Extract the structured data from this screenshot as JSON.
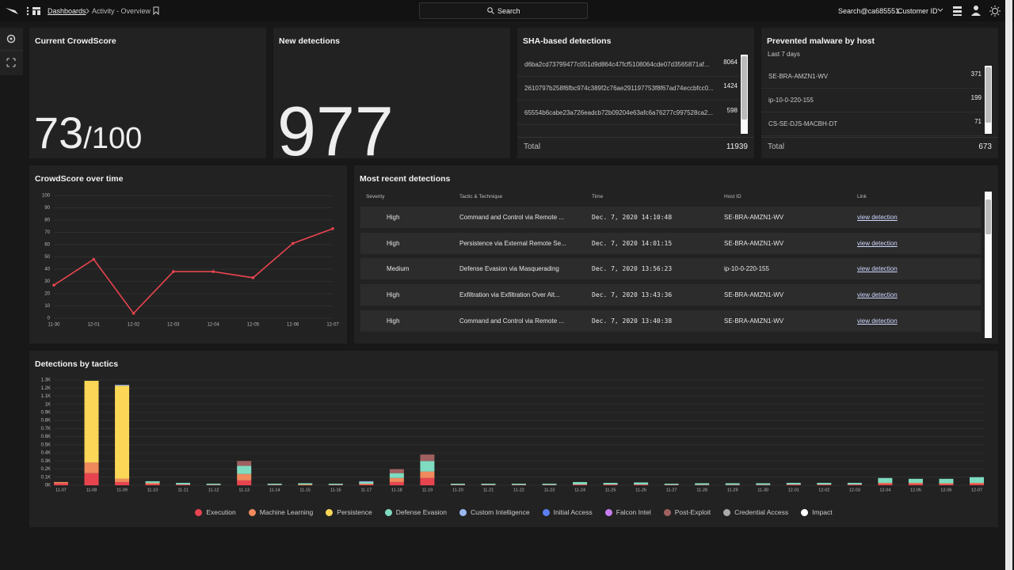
{
  "header": {
    "breadcrumb": "Dashboards",
    "page": "Activity - Overview",
    "search": "Search",
    "user": "Search@ca685551",
    "customer": "Customer ID"
  },
  "crowdscore": {
    "title": "Current CrowdScore",
    "score": 73,
    "out_of": "/100"
  },
  "new_detections": {
    "title": "New detections",
    "value": 977
  },
  "sha_detections": {
    "title": "SHA-based detections",
    "rows": [
      {
        "hash": "d6ba2cd73799477c051d9d864c47fcf5108064cde07d3565871af...",
        "count": 8064
      },
      {
        "hash": "2610797b258f6fbc974c389f2c76ae291197753f8f67ad74eccbfcc0...",
        "count": 1424
      },
      {
        "hash": "65554b6cabe23a726eadcb72b09204e63afc6a76277c997528ca2...",
        "count": 598
      }
    ],
    "total_label": "Total",
    "total": 11939
  },
  "prevented_malware": {
    "title": "Prevented malware by host",
    "subtitle": "Last 7 days",
    "rows": [
      {
        "host": "SE-BRA-AMZN1-WV",
        "count": 371
      },
      {
        "host": "ip-10-0-220-155",
        "count": 199
      },
      {
        "host": "CS-SE-DJS-MACBH-DT",
        "count": 71
      }
    ],
    "total_label": "Total",
    "total": 673
  },
  "crowdscore_chart": {
    "type": "line",
    "title": "CrowdScore over time",
    "categories": [
      "11-30",
      "12-01",
      "12-02",
      "12-03",
      "12-04",
      "12-05",
      "12-06",
      "12-07"
    ],
    "values": [
      27,
      48,
      4,
      38,
      38,
      33,
      61,
      73
    ],
    "color": "#e8444f",
    "ylim": [
      0,
      100
    ],
    "yticks": [
      0,
      10,
      20,
      30,
      40,
      50,
      60,
      70,
      80,
      90,
      100
    ],
    "grid": true
  },
  "recent_detections": {
    "title": "Most recent detections",
    "columns": [
      "Severity",
      "Tactic & Technique",
      "Time",
      "Host ID",
      "Link"
    ],
    "rows": [
      {
        "severity": "High",
        "severity_color": "#2ec4a5",
        "tactic": "Command and Control via Remote ...",
        "time": "Dec. 7, 2020 14:10:48",
        "host": "SE-BRA-AMZN1-WV",
        "link": "view detection"
      },
      {
        "severity": "High",
        "severity_color": "#2ec4a5",
        "tactic": "Persistence via External Remote Se...",
        "time": "Dec. 7, 2020 14:01:15",
        "host": "SE-BRA-AMZN1-WV",
        "link": "view detection"
      },
      {
        "severity": "Medium",
        "severity_color": "#f5c21b",
        "tactic": "Defense Evasion via Masquerading",
        "time": "Dec. 7, 2020 13:56:23",
        "host": "ip-10-0-220-155",
        "link": "view detection"
      },
      {
        "severity": "High",
        "severity_color": "#f07a3a",
        "tactic": "Exfiltration via Exfiltration Over Alt...",
        "time": "Dec. 7, 2020 13:43:36",
        "host": "SE-BRA-AMZN1-WV",
        "link": "view detection"
      },
      {
        "severity": "High",
        "severity_color": "#2ec4a5",
        "tactic": "Command and Control via Remote ...",
        "time": "Dec. 7, 2020 13:40:38",
        "host": "SE-BRA-AMZN1-WV",
        "link": "view detection"
      }
    ]
  },
  "tactics_chart": {
    "type": "bar",
    "stacked": true,
    "title": "Detections by tactics",
    "grid": true,
    "legend": "bottom",
    "categories": [
      "11-07",
      "11-08",
      "11-09",
      "11-10",
      "11-11",
      "11-12",
      "11-13",
      "11-14",
      "11-15",
      "11-16",
      "11-17",
      "11-18",
      "11-19",
      "11-20",
      "11-21",
      "11-22",
      "11-23",
      "11-24",
      "11-25",
      "11-26",
      "11-27",
      "11-28",
      "11-29",
      "11-30",
      "12-01",
      "12-02",
      "12-03",
      "12-04",
      "12-05",
      "12-06",
      "12-07"
    ],
    "ylim": [
      0,
      1300
    ],
    "yticks": [
      {
        "value": 0,
        "label": "0K"
      },
      {
        "value": 100,
        "label": "0.1K"
      },
      {
        "value": 200,
        "label": "0.2K"
      },
      {
        "value": 300,
        "label": "0.3K"
      },
      {
        "value": 400,
        "label": "0.4K"
      },
      {
        "value": 500,
        "label": "0.5K"
      },
      {
        "value": 600,
        "label": "0.6K"
      },
      {
        "value": 700,
        "label": "0.7K"
      },
      {
        "value": 800,
        "label": "0.8K"
      },
      {
        "value": 900,
        "label": "0.9K"
      },
      {
        "value": 1000,
        "label": "1K"
      },
      {
        "value": 1100,
        "label": "1.1K"
      },
      {
        "value": 1200,
        "label": "1.2K"
      },
      {
        "value": 1300,
        "label": "1.3K"
      }
    ],
    "series": [
      {
        "name": "Execution",
        "color": "#e8444f",
        "values": [
          25,
          150,
          40,
          15,
          10,
          5,
          60,
          5,
          0,
          5,
          10,
          40,
          90,
          5,
          5,
          5,
          5,
          10,
          10,
          10,
          5,
          5,
          5,
          5,
          10,
          10,
          10,
          20,
          20,
          15,
          20
        ]
      },
      {
        "name": "Machine Learning",
        "color": "#f08a5d",
        "values": [
          15,
          130,
          40,
          15,
          0,
          0,
          80,
          0,
          10,
          0,
          10,
          50,
          80,
          0,
          0,
          0,
          0,
          0,
          0,
          0,
          0,
          0,
          0,
          0,
          0,
          0,
          0,
          10,
          10,
          10,
          10
        ]
      },
      {
        "name": "Persistence",
        "color": "#fcd757",
        "values": [
          0,
          1010,
          1150,
          0,
          0,
          0,
          0,
          0,
          0,
          0,
          0,
          0,
          0,
          0,
          0,
          0,
          0,
          0,
          0,
          0,
          0,
          0,
          0,
          0,
          0,
          0,
          0,
          0,
          0,
          0,
          0
        ]
      },
      {
        "name": "Defense Evasion",
        "color": "#7fdcc0",
        "values": [
          0,
          0,
          0,
          20,
          20,
          15,
          100,
          15,
          15,
          15,
          20,
          60,
          130,
          15,
          15,
          15,
          15,
          30,
          20,
          25,
          15,
          20,
          20,
          20,
          20,
          20,
          20,
          60,
          50,
          55,
          70
        ]
      },
      {
        "name": "Custom Intelligence",
        "color": "#9ab8f0",
        "values": [
          0,
          0,
          10,
          0,
          0,
          0,
          0,
          0,
          0,
          0,
          10,
          0,
          0,
          0,
          0,
          0,
          0,
          0,
          0,
          0,
          0,
          0,
          0,
          0,
          0,
          0,
          0,
          0,
          0,
          0,
          0
        ]
      },
      {
        "name": "Initial Access",
        "color": "#5b7ff0",
        "values": [
          0,
          0,
          0,
          0,
          0,
          0,
          0,
          0,
          0,
          0,
          0,
          0,
          0,
          0,
          0,
          0,
          0,
          0,
          0,
          0,
          0,
          0,
          0,
          0,
          0,
          0,
          0,
          0,
          0,
          0,
          0
        ]
      },
      {
        "name": "Falcon Intel",
        "color": "#c77df0",
        "values": [
          0,
          0,
          0,
          0,
          0,
          0,
          0,
          0,
          0,
          0,
          0,
          0,
          0,
          0,
          0,
          0,
          0,
          0,
          0,
          0,
          0,
          0,
          0,
          0,
          0,
          0,
          0,
          0,
          0,
          0,
          0
        ]
      },
      {
        "name": "Post-Exploit",
        "color": "#a06060",
        "values": [
          0,
          0,
          0,
          0,
          0,
          0,
          60,
          0,
          0,
          0,
          0,
          50,
          80,
          0,
          0,
          0,
          0,
          0,
          0,
          0,
          0,
          0,
          0,
          0,
          0,
          0,
          0,
          0,
          0,
          0,
          0
        ]
      },
      {
        "name": "Credential Access",
        "color": "#aaaaaa",
        "values": [
          0,
          0,
          0,
          0,
          0,
          0,
          0,
          0,
          0,
          0,
          0,
          0,
          0,
          0,
          0,
          0,
          0,
          0,
          0,
          0,
          0,
          0,
          0,
          0,
          0,
          0,
          0,
          0,
          0,
          0,
          0
        ]
      },
      {
        "name": "Impact",
        "color": "#ffffff",
        "values": [
          0,
          0,
          0,
          0,
          0,
          0,
          0,
          0,
          0,
          0,
          0,
          0,
          0,
          0,
          0,
          0,
          0,
          0,
          0,
          0,
          0,
          0,
          0,
          0,
          0,
          0,
          0,
          0,
          0,
          0,
          0
        ]
      }
    ]
  }
}
